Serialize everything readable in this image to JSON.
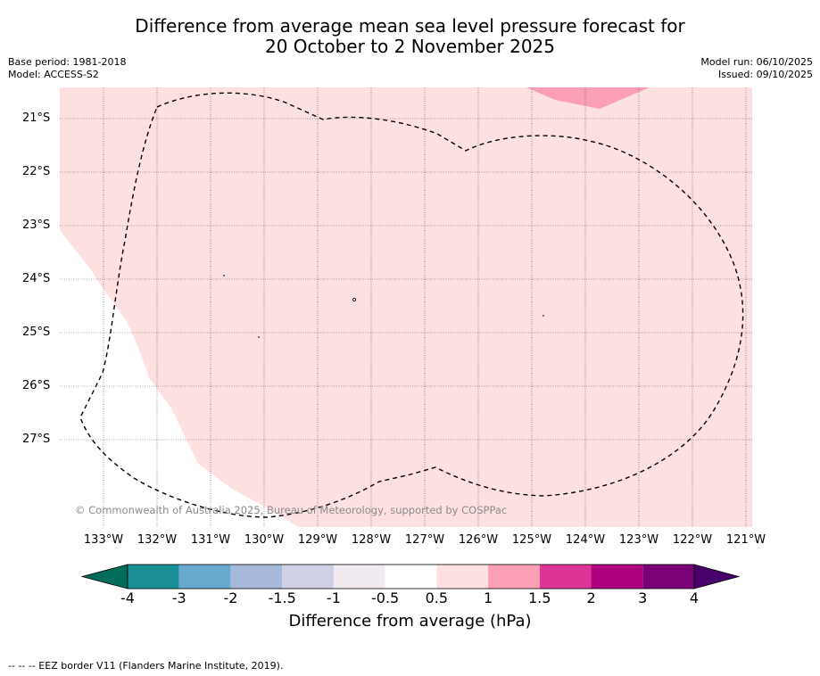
{
  "title_line1": "Difference from average mean sea level pressure forecast for",
  "title_line2": "20 October to 2 November 2025",
  "base_period": "Base period: 1981-2018",
  "model": "Model: ACCESS-S2",
  "model_run": "Model run: 06/10/2025",
  "issued": "Issued: 09/10/2025",
  "copyright": "© Commonwealth of Australia 2025, Bureau of Meteorology, supported by COSPPac",
  "latitudes": [
    "21°S",
    "22°S",
    "23°S",
    "24°S",
    "25°S",
    "26°S",
    "27°S"
  ],
  "longitudes": [
    "133°W",
    "132°W",
    "131°W",
    "130°W",
    "129°W",
    "128°W",
    "127°W",
    "126°W",
    "125°W",
    "124°W",
    "123°W",
    "122°W",
    "121°W"
  ],
  "colorbar": {
    "ticks": [
      "-4",
      "-3",
      "-2",
      "-1.5",
      "-1",
      "-0.5",
      "0.5",
      "1",
      "1.5",
      "2",
      "3",
      "4"
    ],
    "colors": [
      "#1a8f96",
      "#68a9cf",
      "#a6b9db",
      "#d0d1e6",
      "#f1eaf1",
      "#ffffff",
      "#fde0e0",
      "#fa9fb5",
      "#dd3497",
      "#ae017e",
      "#7a0177"
    ],
    "under_color": "#016c59",
    "over_color": "#49006a",
    "label": "Difference from average (hPa)"
  },
  "colors": {
    "light_pink": "#fde0e0",
    "pink": "#fa9fb5"
  },
  "footer": "-- -- -- EEZ border V11 (Flanders Marine Institute, 2019)."
}
